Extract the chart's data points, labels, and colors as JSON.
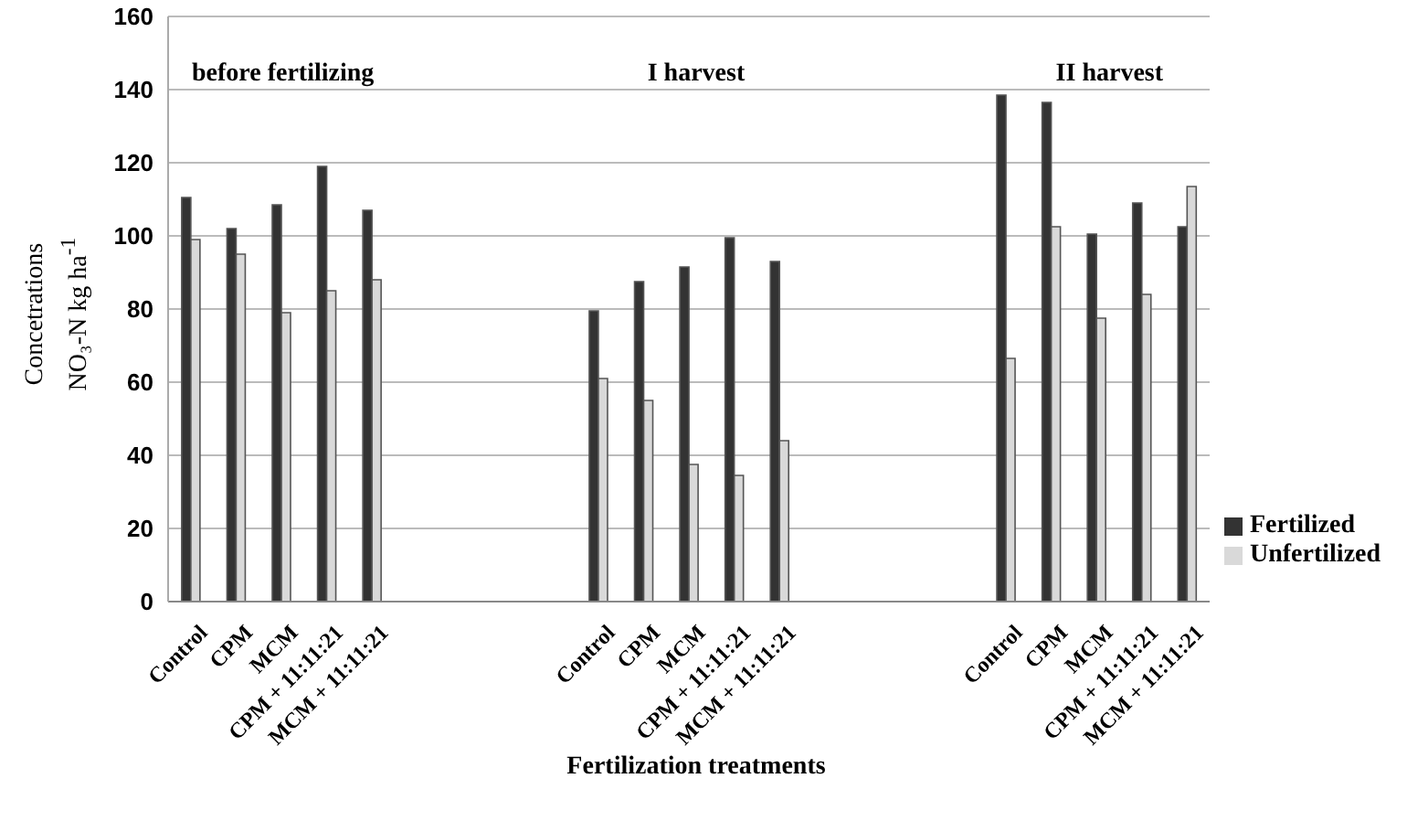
{
  "chart_data": {
    "type": "bar",
    "xlabel": "Fertilization treatments",
    "ylabel": "Concetrations NO₃-N kg ha$^{-1}$",
    "annotations": [
      "before fertilizing",
      "I harvest",
      "II harvest"
    ],
    "categories": [
      "Control",
      "CPM",
      "MCM",
      "CPM + 11:11:21",
      "MCM + 11:11:21",
      null,
      null,
      null,
      null,
      "Control",
      "CPM",
      "MCM",
      "CPM + 11:11:21",
      "MCM + 11:11:21",
      null,
      null,
      null,
      null,
      "Control",
      "CPM",
      "MCM",
      "CPM + 11:11:21",
      "MCM + 11:11:21"
    ],
    "series": [
      {
        "name": "Fertilized",
        "color": "#333333",
        "values": [
          110.5,
          102,
          108.5,
          119,
          107,
          null,
          null,
          null,
          null,
          79.5,
          87.5,
          91.5,
          99.5,
          93,
          null,
          null,
          null,
          null,
          138.5,
          136.5,
          100.5,
          109,
          102.5
        ]
      },
      {
        "name": "Unfertilized",
        "color": "#d9d9d9",
        "values": [
          99,
          95,
          79,
          85,
          88,
          null,
          null,
          null,
          null,
          61,
          55,
          37.5,
          34.5,
          44,
          null,
          null,
          null,
          null,
          66.5,
          102.5,
          77.5,
          84,
          113.5
        ]
      }
    ],
    "ylim": [
      0,
      160
    ],
    "yticks": [
      0,
      20,
      40,
      60,
      80,
      100,
      120,
      140,
      160
    ],
    "grid": "y",
    "legend": "right"
  }
}
